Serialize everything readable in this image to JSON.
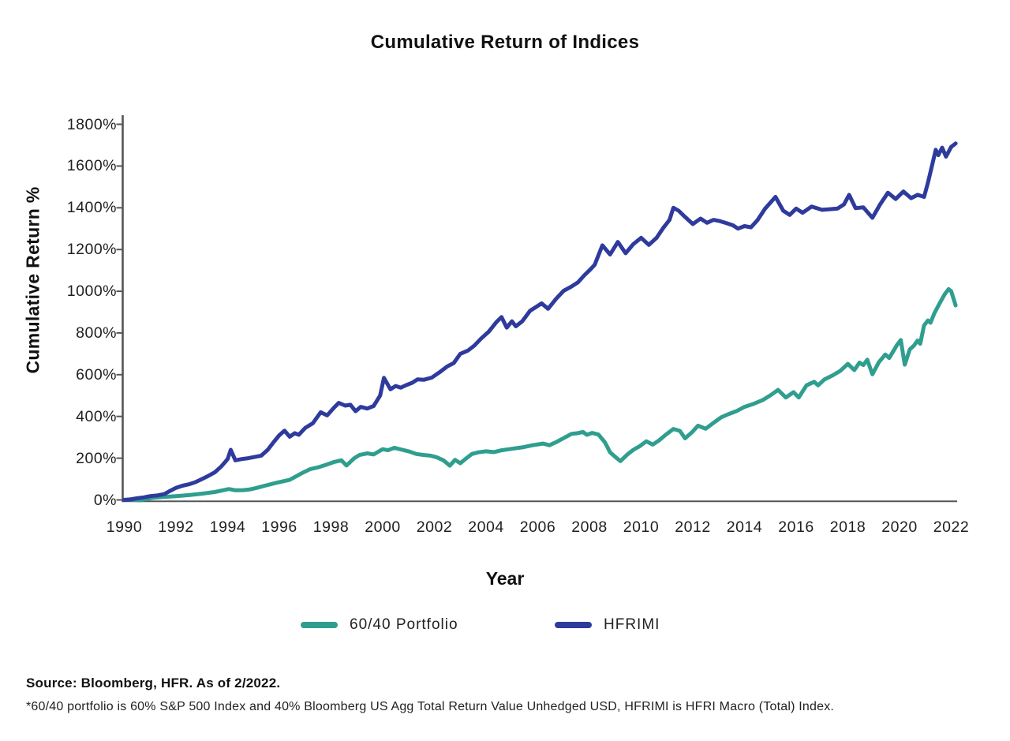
{
  "title": "Cumulative Return of Indices",
  "source_note": "Source: Bloomberg, HFR. As of 2/2022.",
  "footnote": "*60/40 portfolio is 60% S&P 500 Index and 40% Bloomberg US Agg Total Return Value Unhedged USD, HFRIMI is HFRI Macro (Total) Index.",
  "colors": {
    "portfolio_6040": "#2f9e8f",
    "hfrimi": "#2e3b9d",
    "axis": "#55565a",
    "text": "#1a1a1a"
  },
  "chart_data": {
    "type": "line",
    "title": "Cumulative Return of Indices",
    "xlabel": "Year",
    "ylabel": "Cumulative Return %",
    "x_range": [
      1990,
      2022.2
    ],
    "ylim": [
      0,
      1800
    ],
    "y_tick_step": 200,
    "y_tick_suffix": "%",
    "x_ticks": [
      1990,
      1992,
      1994,
      1996,
      1998,
      2000,
      2002,
      2004,
      2006,
      2008,
      2010,
      2012,
      2014,
      2016,
      2018,
      2020,
      2022
    ],
    "grid": false,
    "legend_position": "bottom",
    "axis_color": "#55565a",
    "series": [
      {
        "name": "60/40 Portfolio",
        "slug": "6040-portfolio",
        "color": "#2f9e8f",
        "points": [
          [
            1990.0,
            0
          ],
          [
            1990.3,
            2
          ],
          [
            1990.6,
            -2
          ],
          [
            1990.85,
            4
          ],
          [
            1991.1,
            10
          ],
          [
            1991.5,
            14
          ],
          [
            1992.0,
            18
          ],
          [
            1992.5,
            23
          ],
          [
            1993.0,
            30
          ],
          [
            1993.5,
            38
          ],
          [
            1994.05,
            52
          ],
          [
            1994.3,
            46
          ],
          [
            1994.6,
            47
          ],
          [
            1994.85,
            50
          ],
          [
            1995.1,
            57
          ],
          [
            1995.5,
            70
          ],
          [
            1995.95,
            84
          ],
          [
            1996.4,
            96
          ],
          [
            1996.9,
            130
          ],
          [
            1997.2,
            148
          ],
          [
            1997.5,
            156
          ],
          [
            1997.8,
            168
          ],
          [
            1998.1,
            181
          ],
          [
            1998.4,
            190
          ],
          [
            1998.6,
            165
          ],
          [
            1998.9,
            200
          ],
          [
            1999.1,
            215
          ],
          [
            1999.4,
            223
          ],
          [
            1999.65,
            218
          ],
          [
            2000.0,
            243
          ],
          [
            2000.2,
            238
          ],
          [
            2000.45,
            250
          ],
          [
            2000.7,
            242
          ],
          [
            2001.0,
            233
          ],
          [
            2001.3,
            220
          ],
          [
            2001.6,
            215
          ],
          [
            2001.85,
            212
          ],
          [
            2002.1,
            204
          ],
          [
            2002.35,
            190
          ],
          [
            2002.6,
            164
          ],
          [
            2002.8,
            192
          ],
          [
            2003.0,
            176
          ],
          [
            2003.2,
            196
          ],
          [
            2003.45,
            220
          ],
          [
            2003.7,
            228
          ],
          [
            2004.0,
            233
          ],
          [
            2004.3,
            229
          ],
          [
            2004.6,
            238
          ],
          [
            2005.0,
            245
          ],
          [
            2005.4,
            252
          ],
          [
            2005.8,
            262
          ],
          [
            2006.2,
            270
          ],
          [
            2006.45,
            262
          ],
          [
            2006.7,
            276
          ],
          [
            2007.0,
            296
          ],
          [
            2007.3,
            316
          ],
          [
            2007.55,
            320
          ],
          [
            2007.75,
            326
          ],
          [
            2007.9,
            312
          ],
          [
            2008.1,
            321
          ],
          [
            2008.35,
            313
          ],
          [
            2008.6,
            276
          ],
          [
            2008.8,
            228
          ],
          [
            2009.0,
            206
          ],
          [
            2009.2,
            186
          ],
          [
            2009.45,
            216
          ],
          [
            2009.7,
            240
          ],
          [
            2009.95,
            258
          ],
          [
            2010.2,
            281
          ],
          [
            2010.45,
            265
          ],
          [
            2010.7,
            286
          ],
          [
            2010.95,
            312
          ],
          [
            2011.25,
            340
          ],
          [
            2011.5,
            331
          ],
          [
            2011.7,
            295
          ],
          [
            2011.95,
            322
          ],
          [
            2012.2,
            356
          ],
          [
            2012.5,
            341
          ],
          [
            2012.8,
            369
          ],
          [
            2013.1,
            396
          ],
          [
            2013.4,
            412
          ],
          [
            2013.7,
            426
          ],
          [
            2014.0,
            446
          ],
          [
            2014.3,
            458
          ],
          [
            2014.7,
            478
          ],
          [
            2015.0,
            501
          ],
          [
            2015.3,
            527
          ],
          [
            2015.6,
            491
          ],
          [
            2015.9,
            516
          ],
          [
            2016.1,
            491
          ],
          [
            2016.4,
            549
          ],
          [
            2016.7,
            566
          ],
          [
            2016.85,
            549
          ],
          [
            2017.1,
            578
          ],
          [
            2017.4,
            596
          ],
          [
            2017.7,
            618
          ],
          [
            2018.0,
            652
          ],
          [
            2018.25,
            622
          ],
          [
            2018.45,
            658
          ],
          [
            2018.6,
            646
          ],
          [
            2018.75,
            672
          ],
          [
            2018.95,
            602
          ],
          [
            2019.2,
            660
          ],
          [
            2019.45,
            697
          ],
          [
            2019.6,
            680
          ],
          [
            2019.9,
            742
          ],
          [
            2020.05,
            766
          ],
          [
            2020.2,
            648
          ],
          [
            2020.4,
            722
          ],
          [
            2020.55,
            738
          ],
          [
            2020.7,
            764
          ],
          [
            2020.8,
            748
          ],
          [
            2020.95,
            836
          ],
          [
            2021.1,
            860
          ],
          [
            2021.2,
            849
          ],
          [
            2021.35,
            895
          ],
          [
            2021.55,
            942
          ],
          [
            2021.75,
            986
          ],
          [
            2021.9,
            1010
          ],
          [
            2022.0,
            1000
          ],
          [
            2022.17,
            932
          ]
        ]
      },
      {
        "name": "HFRIMI",
        "slug": "hfrimi",
        "color": "#2e3b9d",
        "points": [
          [
            1990.0,
            0
          ],
          [
            1990.25,
            3
          ],
          [
            1990.5,
            8
          ],
          [
            1990.75,
            12
          ],
          [
            1991.0,
            18
          ],
          [
            1991.3,
            22
          ],
          [
            1991.55,
            28
          ],
          [
            1991.8,
            45
          ],
          [
            1992.0,
            58
          ],
          [
            1992.25,
            68
          ],
          [
            1992.5,
            75
          ],
          [
            1992.75,
            85
          ],
          [
            1993.0,
            100
          ],
          [
            1993.25,
            115
          ],
          [
            1993.5,
            132
          ],
          [
            1993.75,
            160
          ],
          [
            1994.0,
            196
          ],
          [
            1994.12,
            240
          ],
          [
            1994.3,
            190
          ],
          [
            1994.55,
            196
          ],
          [
            1994.8,
            200
          ],
          [
            1995.0,
            205
          ],
          [
            1995.3,
            212
          ],
          [
            1995.55,
            240
          ],
          [
            1995.8,
            280
          ],
          [
            1996.0,
            310
          ],
          [
            1996.2,
            332
          ],
          [
            1996.4,
            303
          ],
          [
            1996.6,
            320
          ],
          [
            1996.75,
            312
          ],
          [
            1997.0,
            345
          ],
          [
            1997.3,
            368
          ],
          [
            1997.6,
            420
          ],
          [
            1997.85,
            405
          ],
          [
            1998.1,
            440
          ],
          [
            1998.3,
            465
          ],
          [
            1998.55,
            452
          ],
          [
            1998.75,
            456
          ],
          [
            1998.95,
            425
          ],
          [
            1999.15,
            446
          ],
          [
            1999.4,
            438
          ],
          [
            1999.65,
            450
          ],
          [
            1999.9,
            500
          ],
          [
            2000.05,
            585
          ],
          [
            2000.3,
            530
          ],
          [
            2000.5,
            546
          ],
          [
            2000.7,
            538
          ],
          [
            2000.95,
            552
          ],
          [
            2001.15,
            562
          ],
          [
            2001.35,
            578
          ],
          [
            2001.6,
            576
          ],
          [
            2001.9,
            586
          ],
          [
            2002.2,
            612
          ],
          [
            2002.5,
            640
          ],
          [
            2002.75,
            656
          ],
          [
            2003.0,
            700
          ],
          [
            2003.3,
            716
          ],
          [
            2003.55,
            740
          ],
          [
            2003.8,
            772
          ],
          [
            2004.1,
            806
          ],
          [
            2004.4,
            852
          ],
          [
            2004.6,
            876
          ],
          [
            2004.8,
            826
          ],
          [
            2005.0,
            856
          ],
          [
            2005.15,
            832
          ],
          [
            2005.4,
            856
          ],
          [
            2005.7,
            906
          ],
          [
            2006.0,
            930
          ],
          [
            2006.15,
            942
          ],
          [
            2006.4,
            916
          ],
          [
            2006.7,
            962
          ],
          [
            2007.0,
            1002
          ],
          [
            2007.3,
            1022
          ],
          [
            2007.55,
            1042
          ],
          [
            2007.8,
            1076
          ],
          [
            2008.0,
            1100
          ],
          [
            2008.2,
            1126
          ],
          [
            2008.5,
            1220
          ],
          [
            2008.8,
            1176
          ],
          [
            2009.1,
            1236
          ],
          [
            2009.4,
            1182
          ],
          [
            2009.7,
            1226
          ],
          [
            2010.0,
            1256
          ],
          [
            2010.3,
            1222
          ],
          [
            2010.6,
            1256
          ],
          [
            2010.85,
            1302
          ],
          [
            2011.1,
            1342
          ],
          [
            2011.25,
            1400
          ],
          [
            2011.45,
            1386
          ],
          [
            2011.7,
            1356
          ],
          [
            2012.0,
            1322
          ],
          [
            2012.3,
            1348
          ],
          [
            2012.55,
            1328
          ],
          [
            2012.8,
            1342
          ],
          [
            2013.05,
            1336
          ],
          [
            2013.3,
            1326
          ],
          [
            2013.55,
            1316
          ],
          [
            2013.75,
            1300
          ],
          [
            2014.0,
            1312
          ],
          [
            2014.25,
            1306
          ],
          [
            2014.5,
            1340
          ],
          [
            2014.8,
            1396
          ],
          [
            2015.2,
            1452
          ],
          [
            2015.5,
            1386
          ],
          [
            2015.75,
            1366
          ],
          [
            2016.0,
            1396
          ],
          [
            2016.25,
            1376
          ],
          [
            2016.6,
            1406
          ],
          [
            2017.0,
            1390
          ],
          [
            2017.3,
            1393
          ],
          [
            2017.6,
            1396
          ],
          [
            2017.85,
            1416
          ],
          [
            2018.05,
            1462
          ],
          [
            2018.3,
            1398
          ],
          [
            2018.6,
            1402
          ],
          [
            2018.95,
            1352
          ],
          [
            2019.25,
            1416
          ],
          [
            2019.55,
            1472
          ],
          [
            2019.85,
            1442
          ],
          [
            2020.15,
            1478
          ],
          [
            2020.45,
            1446
          ],
          [
            2020.7,
            1462
          ],
          [
            2020.95,
            1452
          ],
          [
            2021.1,
            1520
          ],
          [
            2021.25,
            1598
          ],
          [
            2021.4,
            1678
          ],
          [
            2021.5,
            1652
          ],
          [
            2021.65,
            1688
          ],
          [
            2021.8,
            1645
          ],
          [
            2022.0,
            1692
          ],
          [
            2022.17,
            1708
          ]
        ]
      }
    ]
  }
}
